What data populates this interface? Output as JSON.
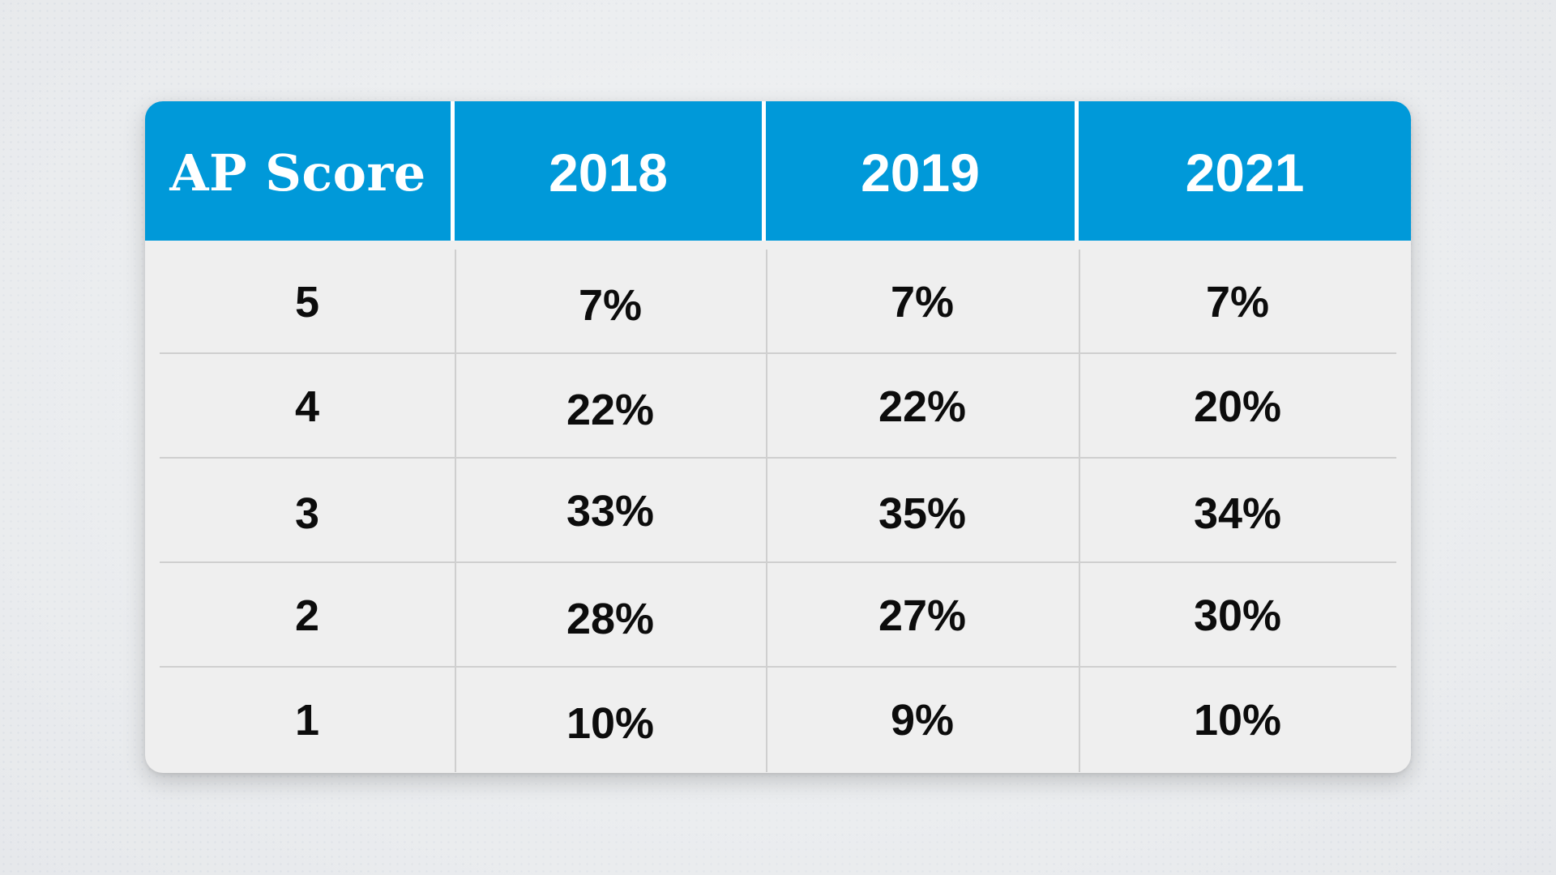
{
  "chart_data": {
    "type": "table",
    "columns": [
      "AP Score",
      "2018",
      "2019",
      "2021"
    ],
    "rows": [
      {
        "score": "5",
        "values": [
          "7%",
          "7%",
          "7%"
        ]
      },
      {
        "score": "4",
        "values": [
          "22%",
          "22%",
          "20%"
        ]
      },
      {
        "score": "3",
        "values": [
          "33%",
          "35%",
          "34%"
        ]
      },
      {
        "score": "2",
        "values": [
          "28%",
          "27%",
          "30%"
        ]
      },
      {
        "score": "1",
        "values": [
          "10%",
          "9%",
          "10%"
        ]
      }
    ]
  },
  "colors": {
    "header_bg": "#0099d9",
    "header_text": "#ffffff",
    "body_text": "#0c0c0c",
    "card_bg": "#efefef"
  }
}
